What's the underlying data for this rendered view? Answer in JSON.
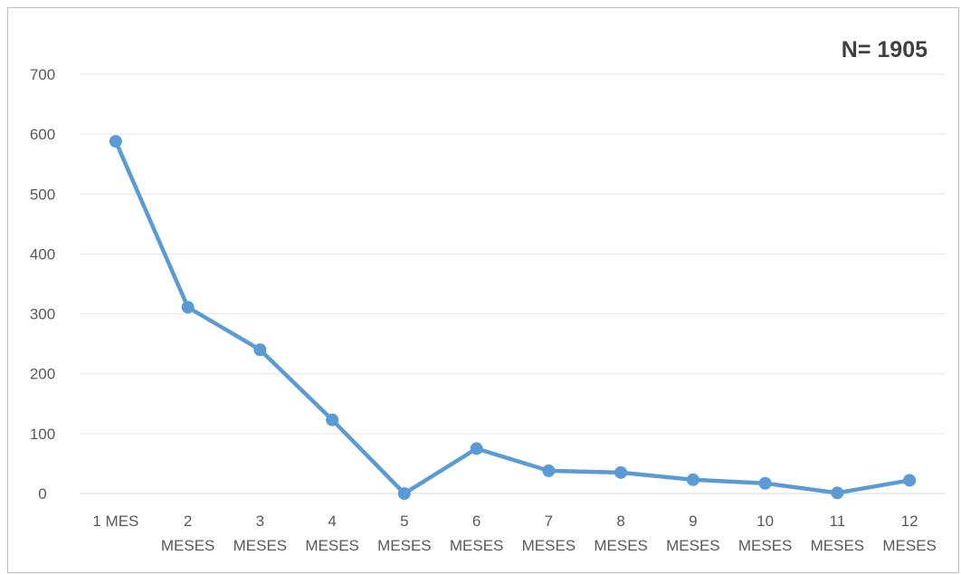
{
  "annotation": "N= 1905",
  "colors": {
    "series": "#5b9bd5",
    "grid": "#e6e6e6",
    "text": "#595959"
  },
  "chart_data": {
    "type": "line",
    "title": "",
    "xlabel": "",
    "ylabel": "",
    "ylim": [
      0,
      700
    ],
    "yticks": [
      "0",
      "100",
      "200",
      "300",
      "400",
      "500",
      "600",
      "700"
    ],
    "grid": true,
    "legend": "none",
    "categories": [
      [
        "1 MES"
      ],
      [
        "2",
        "MESES"
      ],
      [
        "3",
        "MESES"
      ],
      [
        "4",
        "MESES"
      ],
      [
        "5",
        "MESES"
      ],
      [
        "6",
        "MESES"
      ],
      [
        "7",
        "MESES"
      ],
      [
        "8",
        "MESES"
      ],
      [
        "9",
        "MESES"
      ],
      [
        "10",
        "MESES"
      ],
      [
        "11",
        "MESES"
      ],
      [
        "12",
        "MESES"
      ]
    ],
    "series": [
      {
        "values": [
          588,
          311,
          240,
          123,
          0,
          75,
          38,
          35,
          23,
          17,
          1,
          22
        ]
      }
    ]
  }
}
